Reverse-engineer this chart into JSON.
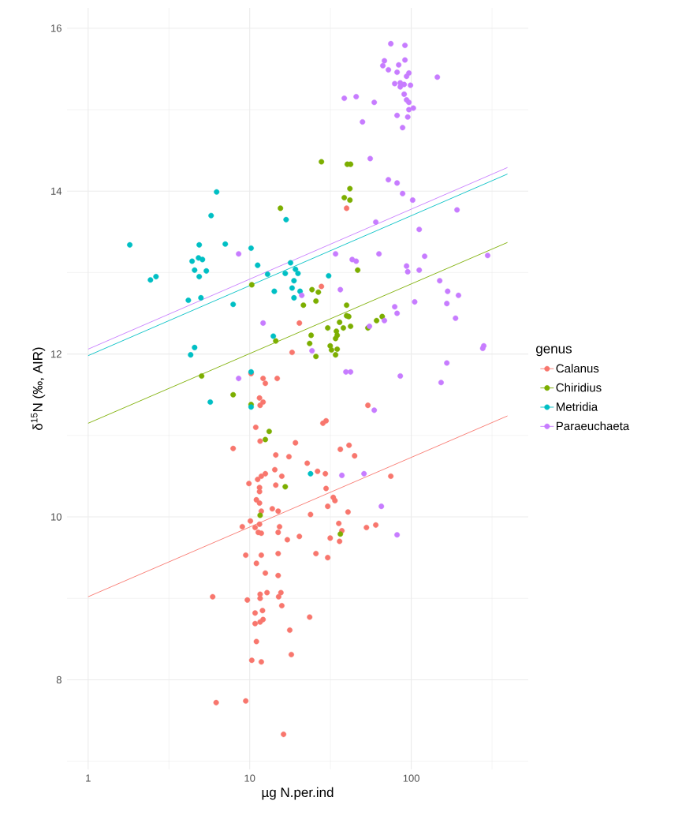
{
  "chart_data": {
    "type": "scatter",
    "xlabel": "µg N.per.ind",
    "ylabel": "δ$^{15}$N (‰, AIR)",
    "legend_title": "genus",
    "log": "x",
    "grid": true,
    "legend": "right",
    "marker": "circle",
    "xlim": [
      0.74,
      530
    ],
    "ylim": [
      6.9,
      16.25
    ],
    "xticks": [
      1,
      {
        "value": 3.162,
        "label": null
      },
      10,
      {
        "value": 31.62,
        "label": null
      },
      100,
      {
        "value": 316.2,
        "label": null
      }
    ],
    "yticks": [
      {
        "value": 7,
        "label": null
      },
      8,
      {
        "value": 9,
        "label": null
      },
      10,
      {
        "value": 11,
        "label": null
      },
      12,
      {
        "value": 13,
        "label": null
      },
      14,
      {
        "value": 15,
        "label": null
      },
      16
    ],
    "series": [
      {
        "name": "Calanus",
        "color": "#f8766d",
        "x": [
          39.8,
          27.8,
          20.3,
          18.3,
          10.2,
          12.1,
          12.5,
          14.8,
          11.5,
          12.1,
          11.6,
          53.9,
          29.7,
          28.4,
          10.9,
          11.6,
          7.9,
          19.2,
          14.5,
          17.5,
          22.7,
          36.4,
          41.2,
          44.6,
          14.3,
          15.8,
          26.3,
          29.4,
          74.7,
          12.5,
          11.8,
          11.2,
          9.89,
          14.5,
          11.5,
          11.5,
          29.7,
          11.0,
          11.5,
          11.8,
          13.8,
          15.0,
          32.9,
          33.7,
          30.4,
          40.6,
          23.8,
          10.1,
          9.0,
          10.8,
          11.5,
          11.3,
          11.8,
          15.3,
          15.0,
          35.6,
          37.2,
          52.8,
          60.3,
          31.5,
          36.0,
          17.1,
          20.3,
          9.45,
          11.8,
          15.0,
          25.7,
          30.4,
          11.0,
          12.5,
          15.0,
          5.9,
          9.67,
          11.6,
          11.6,
          12.8,
          15.1,
          15.6,
          15.8,
          10.8,
          12.0,
          10.8,
          12.1,
          11.6,
          23.5,
          17.7,
          11.0,
          18.1,
          10.3,
          11.8,
          6.2,
          9.45,
          16.2
        ],
        "values": [
          13.79,
          12.83,
          12.38,
          12.02,
          11.76,
          11.7,
          11.64,
          11.7,
          11.46,
          11.41,
          11.37,
          11.37,
          11.18,
          11.15,
          11.1,
          10.93,
          10.84,
          10.91,
          10.76,
          10.74,
          10.66,
          10.83,
          10.88,
          10.75,
          10.58,
          10.5,
          10.56,
          10.53,
          10.5,
          10.53,
          10.5,
          10.46,
          10.41,
          10.39,
          10.36,
          10.31,
          10.35,
          10.21,
          10.17,
          10.07,
          10.1,
          10.07,
          10.24,
          10.2,
          10.13,
          10.06,
          10.03,
          9.95,
          9.88,
          9.87,
          9.91,
          9.81,
          9.8,
          9.88,
          9.81,
          9.92,
          9.83,
          9.87,
          9.9,
          9.74,
          9.7,
          9.72,
          9.76,
          9.53,
          9.53,
          9.55,
          9.55,
          9.5,
          9.43,
          9.31,
          9.28,
          9.02,
          8.98,
          9.05,
          9.0,
          9.07,
          9.02,
          9.07,
          8.91,
          8.82,
          8.85,
          8.69,
          8.74,
          8.71,
          8.77,
          8.61,
          8.47,
          8.31,
          8.24,
          8.22,
          7.72,
          7.74,
          7.33
        ]
      },
      {
        "name": "Chiridius",
        "color": "#7cae00",
        "x": [
          15.5,
          10.3,
          14.5,
          5.04,
          7.9,
          10.2,
          41.7,
          38.5,
          41.7,
          27.8,
          42.1,
          40.2,
          46.6,
          24.3,
          26.6,
          25.7,
          21.5,
          39.8,
          39.8,
          41.0,
          36.0,
          30.4,
          38.0,
          42.1,
          34.4,
          34.8,
          34.0,
          24.0,
          23.5,
          31.5,
          32.1,
          34.8,
          34.0,
          25.7,
          53.9,
          61.0,
          66.1,
          13.2,
          12.5,
          16.6,
          11.6,
          36.4
        ],
        "values": [
          13.79,
          12.85,
          12.16,
          11.73,
          11.5,
          11.38,
          14.03,
          13.92,
          13.89,
          14.36,
          14.33,
          14.33,
          13.03,
          12.79,
          12.76,
          12.65,
          12.6,
          12.6,
          12.47,
          12.46,
          12.39,
          12.32,
          12.32,
          12.34,
          12.28,
          12.23,
          12.19,
          12.23,
          12.13,
          12.1,
          12.05,
          12.06,
          11.99,
          11.97,
          12.32,
          12.41,
          12.46,
          11.05,
          10.95,
          10.37,
          10.02,
          9.79
        ]
      },
      {
        "name": "Metridia",
        "color": "#00bfc4",
        "x": [
          1.81,
          6.24,
          5.77,
          4.87,
          7.06,
          10.2,
          4.4,
          4.82,
          5.1,
          4.56,
          5.39,
          4.87,
          2.43,
          2.63,
          11.2,
          12.9,
          4.17,
          4.99,
          7.9,
          14.2,
          4.56,
          4.31,
          14.0,
          5.7,
          10.2,
          16.8,
          17.9,
          16.6,
          19.2,
          19.9,
          18.8,
          18.3,
          20.5,
          18.8,
          30.8,
          23.8,
          10.2
        ],
        "values": [
          13.34,
          13.99,
          13.7,
          13.34,
          13.35,
          13.3,
          13.14,
          13.18,
          13.16,
          13.03,
          13.02,
          12.95,
          12.91,
          12.95,
          13.09,
          12.98,
          12.66,
          12.69,
          12.61,
          12.77,
          12.08,
          11.99,
          12.22,
          11.41,
          11.35,
          13.65,
          13.12,
          12.99,
          13.04,
          12.99,
          12.9,
          12.81,
          12.77,
          12.69,
          12.96,
          10.53,
          11.78
        ]
      },
      {
        "name": "Paraeuchaeta",
        "color": "#c77cff",
        "x": [
          74.7,
          91.4,
          68.2,
          66.7,
          72.2,
          83.6,
          91.4,
          81.7,
          96.7,
          93.5,
          79.0,
          85.5,
          90.4,
          98.9,
          85.5,
          145,
          90.4,
          93.5,
          96.7,
          103,
          96.7,
          95.1,
          81.7,
          88.4,
          38.5,
          45.6,
          59.0,
          49.9,
          55.7,
          72.2,
          81.7,
          88.4,
          102,
          192,
          60.3,
          112,
          8.54,
          34.0,
          43.1,
          45.6,
          63.1,
          121,
          297,
          93.5,
          95.1,
          112,
          21.0,
          36.4,
          12.1,
          150,
          168,
          196,
          166,
          105,
          79.0,
          81.7,
          68.2,
          55.1,
          188,
          24.3,
          281,
          277,
          166,
          153,
          85.5,
          39.4,
          42.1,
          8.54,
          59.0,
          37.2,
          51.0,
          65.3,
          81.7
        ],
        "values": [
          15.81,
          15.79,
          15.6,
          15.54,
          15.49,
          15.55,
          15.61,
          15.46,
          15.45,
          15.41,
          15.32,
          15.33,
          15.31,
          15.3,
          15.28,
          15.4,
          15.19,
          15.12,
          15.09,
          15.02,
          15.0,
          14.91,
          14.93,
          14.78,
          15.14,
          15.16,
          15.09,
          14.85,
          14.4,
          14.14,
          14.1,
          13.97,
          13.89,
          13.77,
          13.62,
          13.53,
          13.23,
          13.23,
          13.16,
          13.14,
          13.23,
          13.2,
          13.21,
          13.08,
          13.01,
          13.03,
          12.72,
          12.79,
          12.38,
          12.9,
          12.77,
          12.72,
          12.62,
          12.64,
          12.58,
          12.5,
          12.41,
          12.34,
          12.44,
          12.04,
          12.1,
          12.07,
          11.89,
          11.65,
          11.73,
          11.78,
          11.78,
          11.7,
          11.31,
          10.51,
          10.53,
          10.13,
          9.78
        ]
      },
      {
        "type": "line",
        "marker": "none",
        "color": "#f8766d",
        "x": [
          1,
          394
        ],
        "values": [
          9.02,
          11.24
        ]
      },
      {
        "type": "line",
        "marker": "none",
        "color": "#7cae00",
        "x": [
          1,
          394
        ],
        "values": [
          11.15,
          13.37
        ]
      },
      {
        "type": "line",
        "marker": "none",
        "color": "#00bfc4",
        "x": [
          1,
          394
        ],
        "values": [
          11.98,
          14.21
        ]
      },
      {
        "type": "line",
        "marker": "none",
        "color": "#c77cff",
        "x": [
          1,
          394
        ],
        "values": [
          12.06,
          14.29
        ]
      }
    ]
  }
}
